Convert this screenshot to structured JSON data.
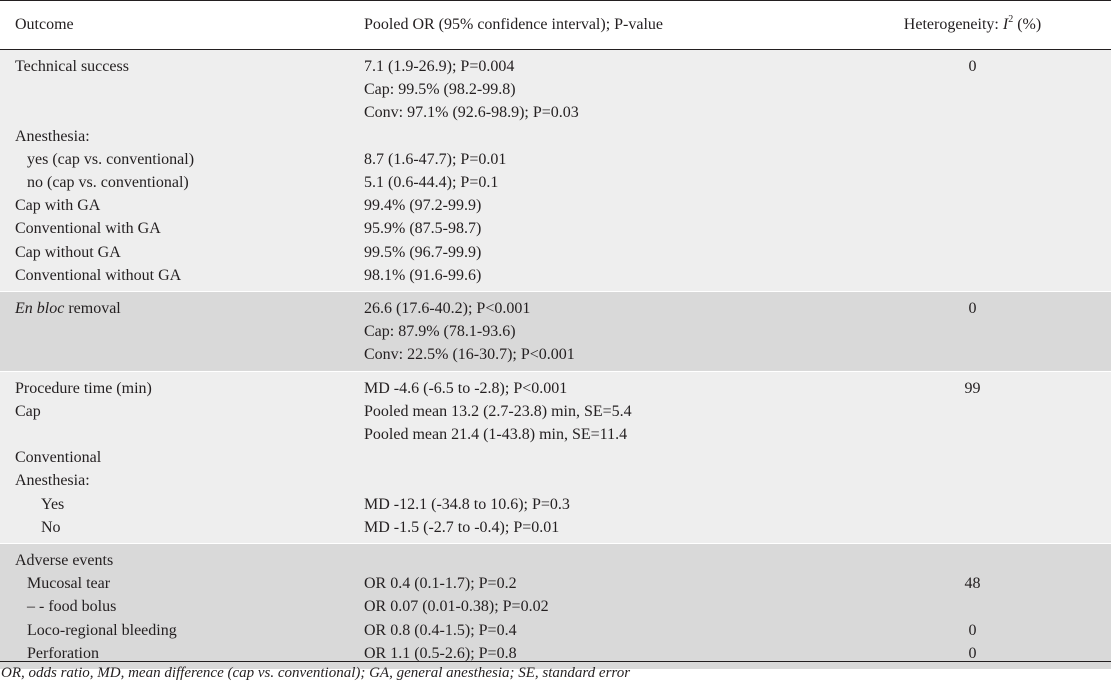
{
  "header": {
    "outcome": "Outcome",
    "pooled": "Pooled OR (95% confidence interval); P-value",
    "heterogeneity_prefix": "Heterogeneity: ",
    "heterogeneity_i": "I",
    "heterogeneity_sup": "2",
    "heterogeneity_suffix": " (%)"
  },
  "technical": {
    "label": "Technical success",
    "val1": "7.1 (1.9-26.9); P=0.004",
    "het": "0",
    "cap": "Cap: 99.5% (98.2-99.8)",
    "conv": "Conv: 97.1% (92.6-98.9); P=0.03",
    "anesthesia": "Anesthesia:",
    "yes_label": "yes (cap vs. conventional)",
    "yes_val": "8.7 (1.6-47.7); P=0.01",
    "no_label": "no (cap vs. conventional)",
    "no_val": "5.1 (0.6-44.4); P=0.1",
    "cap_ga": "Cap with GA",
    "cap_ga_val": "99.4% (97.2-99.9)",
    "conv_ga": "Conventional with GA",
    "conv_ga_val": "95.9% (87.5-98.7)",
    "cap_noga": "Cap without GA",
    "cap_noga_val": "99.5% (96.7-99.9)",
    "conv_noga": "Conventional without GA",
    "conv_noga_val": "98.1% (91.6-99.6)"
  },
  "enbloc": {
    "label_italic": "En bloc",
    "label_rest": " removal",
    "val1": "26.6 (17.6-40.2); P<0.001",
    "het": "0",
    "cap": "Cap: 87.9% (78.1-93.6)",
    "conv": "Conv: 22.5% (16-30.7); P<0.001"
  },
  "procedure": {
    "label": "Procedure time (min)",
    "val1": "MD -4.6 (-6.5 to -2.8); P<0.001",
    "het": "99",
    "cap_label": "Cap",
    "cap_val": "Pooled mean 13.2 (2.7-23.8) min, SE=5.4",
    "conv_val": "Pooled mean 21.4 (1-43.8) min, SE=11.4",
    "conv_label": "Conventional",
    "anesthesia": "Anesthesia:",
    "yes_label": "Yes",
    "yes_val": "MD -12.1 (-34.8 to 10.6); P=0.3",
    "no_label": "No",
    "no_val": "MD -1.5 (-2.7 to -0.4); P=0.01"
  },
  "adverse": {
    "label": "Adverse events",
    "mucosal_label": "Mucosal tear",
    "mucosal_val": "OR 0.4 (0.1-1.7); P=0.2",
    "mucosal_het": "48",
    "food_label": "– - food bolus",
    "food_val": "OR 0.07 (0.01-0.38); P=0.02",
    "loco_label": "Loco-regional bleeding",
    "loco_val": "OR 0.8 (0.4-1.5); P=0.4",
    "loco_het": "0",
    "perf_label": "Perforation",
    "perf_val": "OR 1.1 (0.5-2.6); P=0.8",
    "perf_het": "0"
  },
  "footnote": "OR, odds ratio, MD, mean difference (cap vs. conventional); GA, general anesthesia; SE, standard error"
}
